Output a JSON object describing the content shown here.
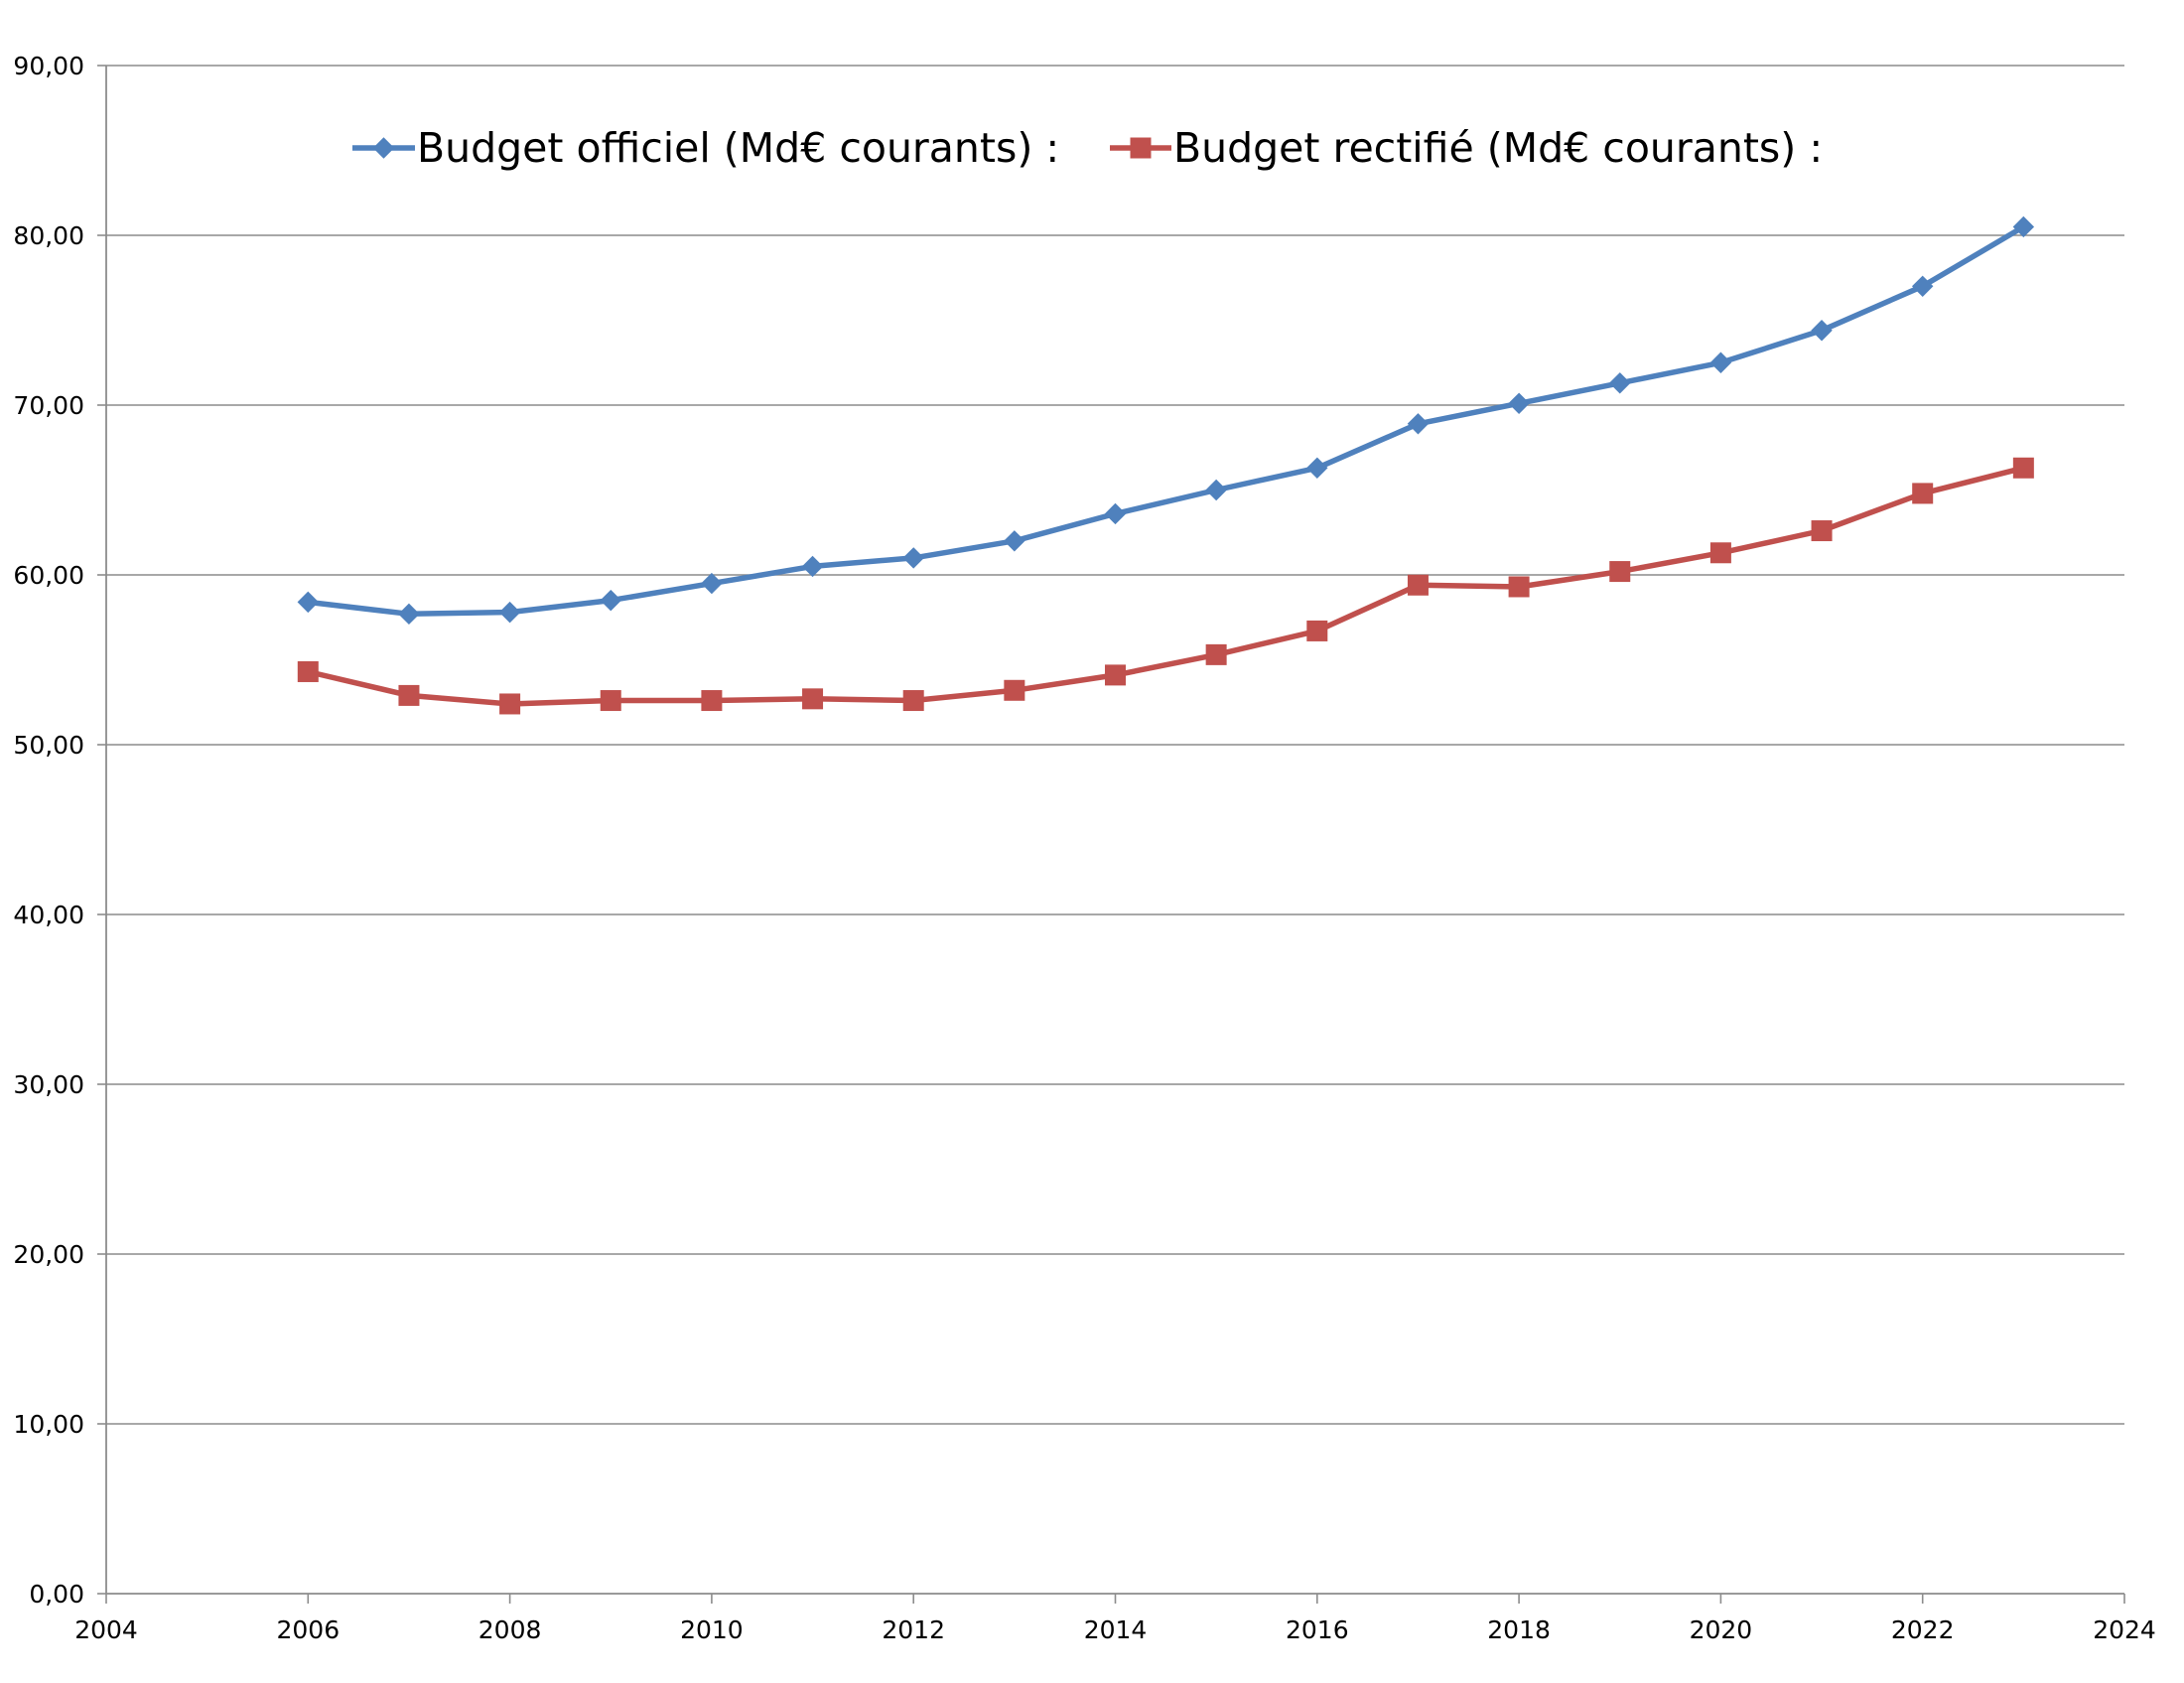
{
  "chart_data": {
    "type": "scatter",
    "title": "",
    "xlabel": "",
    "ylabel": "",
    "xlim": [
      2004,
      2024
    ],
    "ylim": [
      0,
      90
    ],
    "x_ticks": [
      "2004",
      "2006",
      "2008",
      "2010",
      "2012",
      "2014",
      "2016",
      "2018",
      "2020",
      "2022",
      "2024"
    ],
    "y_ticks": [
      "0,00",
      "10,00",
      "20,00",
      "30,00",
      "40,00",
      "50,00",
      "60,00",
      "70,00",
      "80,00",
      "90,00"
    ],
    "grid": "horizontal",
    "legend_position": "top",
    "x": [
      2006,
      2007,
      2008,
      2009,
      2010,
      2011,
      2012,
      2013,
      2014,
      2015,
      2016,
      2017,
      2018,
      2019,
      2020,
      2021,
      2022,
      2023
    ],
    "series": [
      {
        "name": "Budget officiel (Md€ courants) :",
        "color": "#4f81bd",
        "marker": "diamond",
        "values": [
          58.4,
          57.7,
          57.8,
          58.5,
          59.5,
          60.5,
          61.0,
          62.0,
          63.6,
          65.0,
          66.3,
          68.9,
          70.1,
          71.3,
          72.5,
          74.4,
          77.0,
          80.5
        ]
      },
      {
        "name": "Budget rectifié (Md€ courants) :",
        "color": "#c0504d",
        "marker": "square",
        "values": [
          54.3,
          52.9,
          52.4,
          52.6,
          52.6,
          52.7,
          52.6,
          53.2,
          54.1,
          55.3,
          56.7,
          59.4,
          59.3,
          60.2,
          61.3,
          62.6,
          64.8,
          66.3
        ]
      }
    ]
  }
}
